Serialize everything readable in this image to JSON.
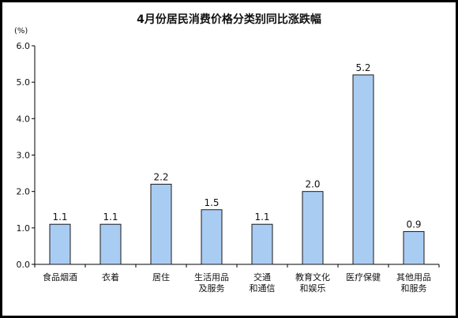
{
  "chart_data": {
    "type": "bar",
    "title": "4月份居民消费价格分类别同比涨跌幅",
    "ylabel": "(%)",
    "xlabel": "",
    "categories": [
      [
        "食品烟酒"
      ],
      [
        "衣着"
      ],
      [
        "居住"
      ],
      [
        "生活用品",
        "及服务"
      ],
      [
        "交通",
        "和通信"
      ],
      [
        "教育文化",
        "和娱乐"
      ],
      [
        "医疗保健"
      ],
      [
        "其他用品",
        "和服务"
      ]
    ],
    "values": [
      1.1,
      1.1,
      2.2,
      1.5,
      1.1,
      2.0,
      5.2,
      0.9
    ],
    "value_labels": [
      "1.1",
      "1.1",
      "2.2",
      "1.5",
      "1.1",
      "2.0",
      "5.2",
      "0.9"
    ],
    "ylim": [
      0,
      6
    ],
    "yticks": [
      "0.0",
      "1.0",
      "2.0",
      "3.0",
      "4.0",
      "5.0",
      "6.0"
    ],
    "ytick_values": [
      0,
      1,
      2,
      3,
      4,
      5,
      6
    ],
    "grid": false,
    "legend": "none",
    "colors": {
      "bar_fill": "#A9CCF2",
      "bar_stroke": "#1A1A1A",
      "axis": "#000000",
      "text": "#111111"
    }
  }
}
